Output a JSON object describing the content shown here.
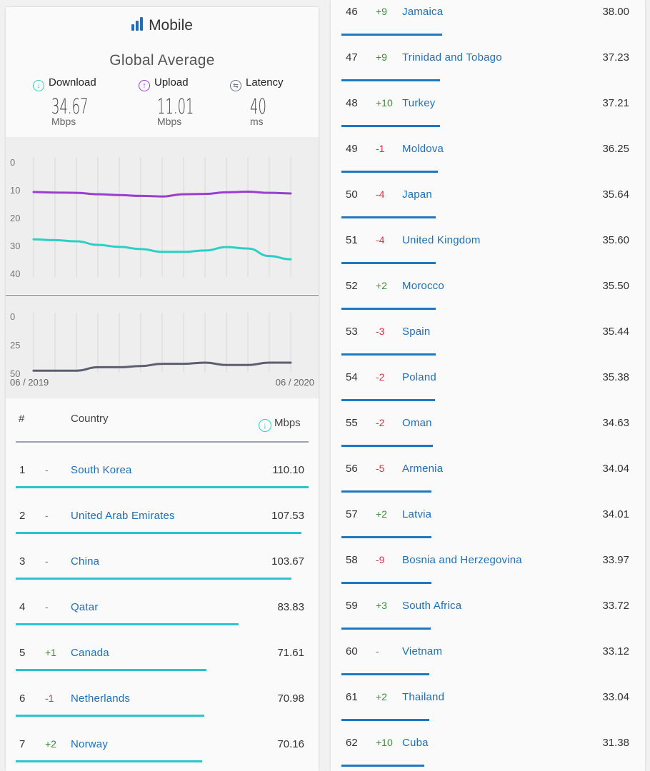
{
  "header": {
    "title": "Mobile",
    "subtitle": "Global Average"
  },
  "metrics": [
    {
      "label": "Download",
      "value": "34.67",
      "unit": "Mbps",
      "color": "#2ccfc4",
      "icon": "download-arrow-icon"
    },
    {
      "label": "Upload",
      "value": "11.01",
      "unit": "Mbps",
      "color": "#9b3ecf",
      "icon": "upload-arrow-icon"
    },
    {
      "label": "Latency",
      "value": "40",
      "unit": "ms",
      "color": "#6e7185",
      "icon": "latency-arrows-icon"
    }
  ],
  "chart_labels": {
    "start": "06 / 2019",
    "end": "06 / 2020"
  },
  "chart_data": [
    {
      "type": "line",
      "x": [
        "06/2019",
        "07/2019",
        "08/2019",
        "09/2019",
        "10/2019",
        "11/2019",
        "12/2019",
        "01/2020",
        "02/2020",
        "03/2020",
        "04/2020",
        "05/2020",
        "06/2020"
      ],
      "ylim": [
        0,
        40
      ],
      "yticks": [
        0,
        10,
        20,
        30,
        40
      ],
      "series": [
        {
          "name": "Download",
          "color": "#2ccfc4",
          "values": [
            27.5,
            27.8,
            28.2,
            29.5,
            30.2,
            31.0,
            32.0,
            32.0,
            31.5,
            30.3,
            30.8,
            33.5,
            34.67
          ]
        },
        {
          "name": "Upload",
          "color": "#9b3ecf",
          "values": [
            10.5,
            10.7,
            10.8,
            11.3,
            11.6,
            11.9,
            12.1,
            11.3,
            11.2,
            10.6,
            10.4,
            10.8,
            11.01
          ]
        }
      ]
    },
    {
      "type": "line",
      "x": [
        "06/2019",
        "07/2019",
        "08/2019",
        "09/2019",
        "10/2019",
        "11/2019",
        "12/2019",
        "01/2020",
        "02/2020",
        "03/2020",
        "04/2020",
        "05/2020",
        "06/2020"
      ],
      "ylim": [
        0,
        50
      ],
      "yticks": [
        0,
        25,
        50
      ],
      "series": [
        {
          "name": "Latency",
          "color": "#5c5f70",
          "values": [
            47,
            47,
            47,
            44,
            44,
            43,
            41,
            41,
            40,
            42,
            42,
            40,
            40
          ]
        }
      ]
    }
  ],
  "table_header": {
    "rank": "#",
    "country": "Country",
    "speed": "Mbps"
  },
  "left_rows": [
    {
      "rank": "1",
      "change": "-",
      "country": "South Korea",
      "speed": "110.10"
    },
    {
      "rank": "2",
      "change": "-",
      "country": "United Arab Emirates",
      "speed": "107.53"
    },
    {
      "rank": "3",
      "change": "-",
      "country": "China",
      "speed": "103.67"
    },
    {
      "rank": "4",
      "change": "-",
      "country": "Qatar",
      "speed": "83.83"
    },
    {
      "rank": "5",
      "change": "+1",
      "country": "Canada",
      "speed": "71.61"
    },
    {
      "rank": "6",
      "change": "-1",
      "country": "Netherlands",
      "speed": "70.98"
    },
    {
      "rank": "7",
      "change": "+2",
      "country": "Norway",
      "speed": "70.16"
    }
  ],
  "right_rows": [
    {
      "rank": "46",
      "change": "+9",
      "country": "Jamaica",
      "speed": "38.00"
    },
    {
      "rank": "47",
      "change": "+9",
      "country": "Trinidad and Tobago",
      "speed": "37.23"
    },
    {
      "rank": "48",
      "change": "+10",
      "country": "Turkey",
      "speed": "37.21"
    },
    {
      "rank": "49",
      "change": "-1",
      "country": "Moldova",
      "speed": "36.25"
    },
    {
      "rank": "50",
      "change": "-4",
      "country": "Japan",
      "speed": "35.64"
    },
    {
      "rank": "51",
      "change": "-4",
      "country": "United Kingdom",
      "speed": "35.60"
    },
    {
      "rank": "52",
      "change": "+2",
      "country": "Morocco",
      "speed": "35.50"
    },
    {
      "rank": "53",
      "change": "-3",
      "country": "Spain",
      "speed": "35.44"
    },
    {
      "rank": "54",
      "change": "-2",
      "country": "Poland",
      "speed": "35.38"
    },
    {
      "rank": "55",
      "change": "-2",
      "country": "Oman",
      "speed": "34.63"
    },
    {
      "rank": "56",
      "change": "-5",
      "country": "Armenia",
      "speed": "34.04"
    },
    {
      "rank": "57",
      "change": "+2",
      "country": "Latvia",
      "speed": "34.01"
    },
    {
      "rank": "58",
      "change": "-9",
      "country": "Bosnia and Herzegovina",
      "speed": "33.97"
    },
    {
      "rank": "59",
      "change": "+3",
      "country": "South Africa",
      "speed": "33.72"
    },
    {
      "rank": "60",
      "change": "-",
      "country": "Vietnam",
      "speed": "33.12"
    },
    {
      "rank": "61",
      "change": "+2",
      "country": "Thailand",
      "speed": "33.04"
    },
    {
      "rank": "62",
      "change": "+10",
      "country": "Cuba",
      "speed": "31.38"
    }
  ],
  "colors": {
    "left_bar": "#2ac4cf",
    "right_bar": "#1d78c1",
    "positive": "#3d8c3d",
    "negative": "#d2344b",
    "link": "#1d6fb8"
  }
}
